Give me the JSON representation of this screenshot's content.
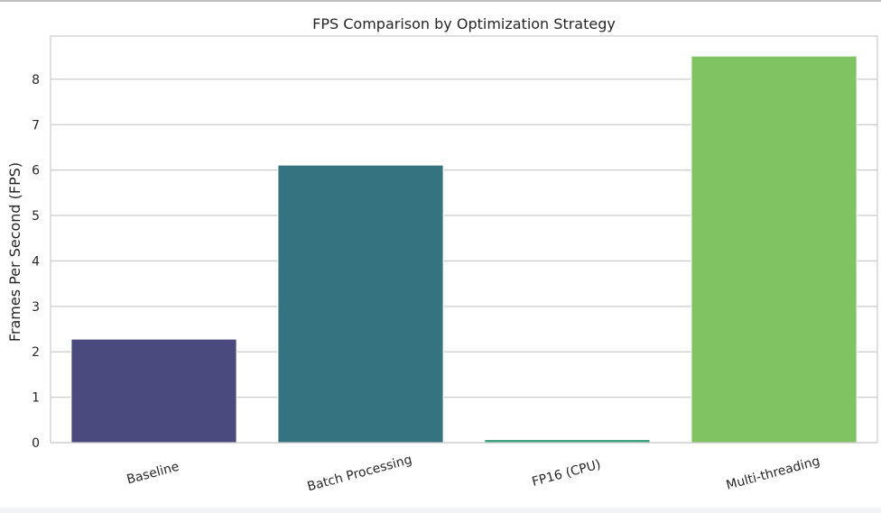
{
  "chart_data": {
    "type": "bar",
    "title": "FPS Comparison by Optimization Strategy",
    "xlabel": "",
    "ylabel": "Frames Per Second (FPS)",
    "categories": [
      "Baseline",
      "Batch Processing",
      "FP16 (CPU)",
      "Multi-threading"
    ],
    "values": [
      2.28,
      6.11,
      0.07,
      8.51
    ],
    "colors": [
      "#4a4a7f",
      "#367380",
      "#3aa27f",
      "#80c362"
    ],
    "ylim": [
      0,
      8.95
    ],
    "yticks": [
      0,
      1,
      2,
      3,
      4,
      5,
      6,
      7,
      8
    ],
    "grid": true,
    "legend": "none"
  }
}
